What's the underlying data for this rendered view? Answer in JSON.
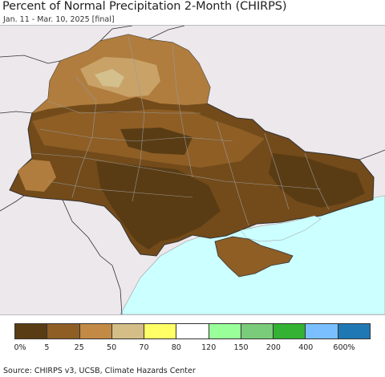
{
  "header": {
    "title": "Percent of Normal Precipitation 2-Month (CHIRPS)",
    "subtitle": "Jan. 11 - Mar. 10, 2025 [final]"
  },
  "map": {
    "region": "Ukraine",
    "background_color": "#ede8ec",
    "sea_color": "#ccffff",
    "land_colors": {
      "darkest": "#5a3c14",
      "dark": "#734b1a",
      "medium": "#8e5e25",
      "light": "#b07d3e",
      "pale": "#c9a268",
      "very_pale": "#d3c08c"
    }
  },
  "legend": {
    "colors": [
      "#5a3c14",
      "#8e5e25",
      "#c28a45",
      "#d4bd86",
      "#ffff66",
      "#ffffff",
      "#99ff99",
      "#7acc7a",
      "#33b233",
      "#7abfff",
      "#1f78b4"
    ],
    "labels": [
      "0%",
      "5",
      "25",
      "50",
      "70",
      "80",
      "120",
      "150",
      "200",
      "400",
      "600%"
    ]
  },
  "footer": {
    "source": "Source: CHIRPS v3, UCSB, Climate Hazards Center"
  }
}
